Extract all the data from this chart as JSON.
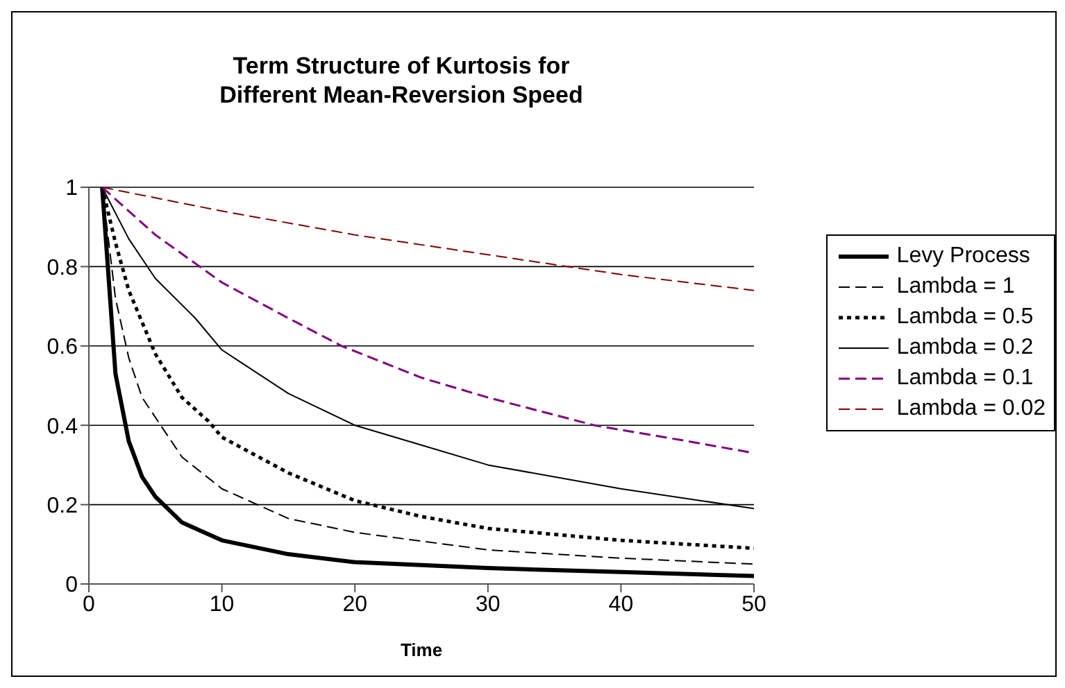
{
  "chart_data": {
    "type": "line",
    "title": "Term Structure of Kurtosis for\nDifferent Mean-Reversion Speed",
    "xlabel": "Time",
    "xlim": [
      0,
      50
    ],
    "xticks": [
      0,
      10,
      20,
      30,
      40,
      50
    ],
    "ylim": [
      0,
      1
    ],
    "yticks": [
      0,
      0.2,
      0.4,
      0.6,
      0.8,
      1
    ],
    "grid": "y",
    "legend": "right",
    "marker": "none",
    "series": [
      {
        "name": "Levy Process",
        "color": "#000000",
        "line_style": "solid",
        "x": [
          1,
          2,
          3,
          4,
          5,
          7,
          10,
          15,
          20,
          30,
          40,
          50
        ],
        "values": [
          1,
          0.53,
          0.36,
          0.27,
          0.22,
          0.155,
          0.11,
          0.075,
          0.055,
          0.04,
          0.03,
          0.02
        ]
      },
      {
        "name": "Lambda = 1",
        "color": "#000000",
        "line_style": "dashed",
        "x": [
          1,
          2,
          3,
          4,
          5,
          7,
          10,
          15,
          20,
          30,
          40,
          50
        ],
        "values": [
          1,
          0.72,
          0.57,
          0.47,
          0.42,
          0.32,
          0.24,
          0.165,
          0.13,
          0.086,
          0.065,
          0.05
        ]
      },
      {
        "name": "Lambda = 0.5",
        "color": "#000000",
        "line_style": "dotted",
        "x": [
          1,
          2,
          3,
          5,
          7,
          9,
          10,
          15,
          20,
          25,
          30,
          40,
          50
        ],
        "values": [
          1,
          0.86,
          0.74,
          0.58,
          0.47,
          0.41,
          0.37,
          0.28,
          0.21,
          0.17,
          0.14,
          0.11,
          0.09
        ]
      },
      {
        "name": "Lambda = 0.2",
        "color": "#000000",
        "line_style": "solid",
        "x": [
          1,
          3,
          5,
          8,
          10,
          15,
          20,
          25,
          30,
          40,
          50
        ],
        "values": [
          1,
          0.87,
          0.77,
          0.67,
          0.59,
          0.48,
          0.4,
          0.35,
          0.3,
          0.24,
          0.19
        ]
      },
      {
        "name": "Lambda = 0.1",
        "color": "#800080",
        "line_style": "dashed",
        "x": [
          1,
          5,
          10,
          15,
          19,
          25,
          30,
          38,
          45,
          50
        ],
        "values": [
          1,
          0.88,
          0.76,
          0.67,
          0.6,
          0.52,
          0.47,
          0.4,
          0.36,
          0.33
        ]
      },
      {
        "name": "Lambda = 0.02",
        "color": "#800000",
        "line_style": "dashed",
        "x": [
          1,
          10,
          20,
          30,
          40,
          50
        ],
        "values": [
          1,
          0.94,
          0.88,
          0.83,
          0.78,
          0.74
        ]
      }
    ]
  }
}
